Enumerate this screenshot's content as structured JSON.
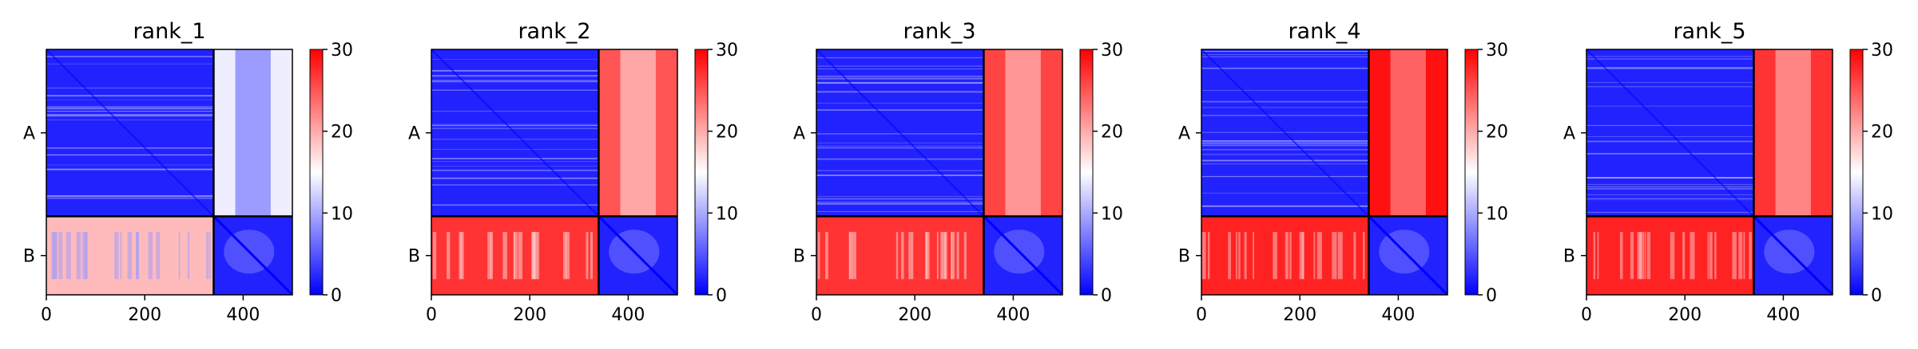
{
  "chart_data": [
    {
      "type": "heatmap",
      "title": "rank_1",
      "chains": [
        "A",
        "B"
      ],
      "chain_boundary": 340,
      "residues": 500,
      "xlim": [
        0,
        500
      ],
      "xticks": [
        0,
        200,
        400
      ],
      "colorbar": {
        "min": 0,
        "max": 30,
        "ticks": [
          0,
          10,
          20,
          30
        ],
        "colormap": "bwr"
      },
      "blocks": {
        "AA": 2,
        "AB": 14,
        "BA": 19,
        "BB": 2
      }
    },
    {
      "type": "heatmap",
      "title": "rank_2",
      "chains": [
        "A",
        "B"
      ],
      "chain_boundary": 340,
      "residues": 500,
      "xlim": [
        0,
        500
      ],
      "xticks": [
        0,
        200,
        400
      ],
      "colorbar": {
        "min": 0,
        "max": 30,
        "ticks": [
          0,
          10,
          20,
          30
        ],
        "colormap": "bwr"
      },
      "blocks": {
        "AA": 2,
        "AB": 25,
        "BA": 27,
        "BB": 2
      }
    },
    {
      "type": "heatmap",
      "title": "rank_3",
      "chains": [
        "A",
        "B"
      ],
      "chain_boundary": 340,
      "residues": 500,
      "xlim": [
        0,
        500
      ],
      "xticks": [
        0,
        200,
        400
      ],
      "colorbar": {
        "min": 0,
        "max": 30,
        "ticks": [
          0,
          10,
          20,
          30
        ],
        "colormap": "bwr"
      },
      "blocks": {
        "AA": 2,
        "AB": 26,
        "BA": 27,
        "BB": 2
      }
    },
    {
      "type": "heatmap",
      "title": "rank_4",
      "chains": [
        "A",
        "B"
      ],
      "chain_boundary": 340,
      "residues": 500,
      "xlim": [
        0,
        500
      ],
      "xticks": [
        0,
        200,
        400
      ],
      "colorbar": {
        "min": 0,
        "max": 30,
        "ticks": [
          0,
          10,
          20,
          30
        ],
        "colormap": "bwr"
      },
      "blocks": {
        "AA": 2,
        "AB": 29,
        "BA": 28,
        "BB": 2
      }
    },
    {
      "type": "heatmap",
      "title": "rank_5",
      "chains": [
        "A",
        "B"
      ],
      "chain_boundary": 340,
      "residues": 500,
      "xlim": [
        0,
        500
      ],
      "xticks": [
        0,
        200,
        400
      ],
      "colorbar": {
        "min": 0,
        "max": 30,
        "ticks": [
          0,
          10,
          20,
          30
        ],
        "colormap": "bwr"
      },
      "blocks": {
        "AA": 2,
        "AB": 27,
        "BA": 28,
        "BB": 2
      }
    }
  ]
}
